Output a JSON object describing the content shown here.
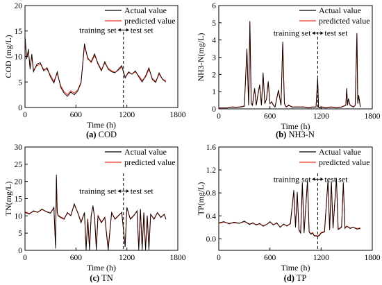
{
  "figure": {
    "panels_count": 4
  },
  "chart_data": [
    {
      "id": "cod",
      "type": "line",
      "caption_letter": "(a)",
      "caption_name": "COD",
      "xlabel": "Time (h)",
      "ylabel": "COD (mg/L)",
      "xlim": [
        0,
        1800
      ],
      "ylim": [
        0,
        20
      ],
      "xticks": [
        "0",
        "600",
        "1200",
        "1800"
      ],
      "yticks": [
        "0",
        "5",
        "10",
        "15",
        "20"
      ],
      "split_x": 1160,
      "annotation": {
        "left": "training set",
        "right": "test set",
        "y": 15.2
      },
      "legend": [
        "Actual value",
        "predicted value"
      ],
      "series": [
        {
          "name": "Actual value",
          "color": "#000000",
          "x": [
            0,
            20,
            40,
            60,
            80,
            100,
            140,
            180,
            220,
            260,
            300,
            340,
            380,
            420,
            460,
            500,
            540,
            580,
            620,
            660,
            700,
            740,
            780,
            820,
            860,
            900,
            940,
            980,
            1020,
            1060,
            1100,
            1140,
            1180,
            1220,
            1260,
            1300,
            1340,
            1380,
            1420,
            1460,
            1500,
            1540,
            1580,
            1620,
            1660
          ],
          "y": [
            14.0,
            9.5,
            11.5,
            7.5,
            10.5,
            7.0,
            8.5,
            8.8,
            7.2,
            7.8,
            6.0,
            4.8,
            7.0,
            4.0,
            2.8,
            2.2,
            3.0,
            2.5,
            3.2,
            4.8,
            12.5,
            9.5,
            9.0,
            10.5,
            8.5,
            7.2,
            9.0,
            7.5,
            7.0,
            6.8,
            7.5,
            8.2,
            5.8,
            7.0,
            6.5,
            7.2,
            6.0,
            5.0,
            6.2,
            7.8,
            5.5,
            4.9,
            6.8,
            5.5,
            5.0
          ]
        },
        {
          "name": "predicted value",
          "color": "#e8331b",
          "x": [
            0,
            20,
            40,
            60,
            80,
            100,
            140,
            180,
            220,
            260,
            300,
            340,
            380,
            420,
            460,
            500,
            540,
            580,
            620,
            660,
            700,
            740,
            780,
            820,
            860,
            900,
            940,
            980,
            1020,
            1060,
            1100,
            1140,
            1180,
            1220,
            1260,
            1300,
            1340,
            1380,
            1420,
            1460,
            1500,
            1540,
            1580,
            1620,
            1660
          ],
          "y": [
            13.6,
            9.8,
            11.0,
            7.8,
            10.0,
            7.3,
            8.2,
            8.5,
            7.5,
            7.5,
            6.3,
            5.1,
            6.7,
            4.3,
            3.1,
            2.5,
            3.3,
            2.8,
            3.4,
            5.0,
            12.0,
            9.8,
            8.8,
            10.2,
            8.7,
            7.4,
            8.7,
            7.7,
            7.2,
            6.9,
            7.3,
            8.0,
            6.0,
            6.8,
            6.6,
            7.0,
            6.2,
            5.3,
            6.0,
            7.5,
            5.7,
            5.1,
            6.5,
            5.6,
            5.2
          ]
        }
      ]
    },
    {
      "id": "nh3n",
      "type": "line",
      "caption_letter": "(b)",
      "caption_name": "NH3-N",
      "xlabel": "Time (h)",
      "ylabel": "NH3-N(mg/L)",
      "xlim": [
        0,
        1800
      ],
      "ylim": [
        0,
        6
      ],
      "xticks": [
        "0",
        "600",
        "1200",
        "1800"
      ],
      "yticks": [
        "0",
        "1",
        "2",
        "3",
        "4",
        "5",
        "6"
      ],
      "split_x": 1160,
      "annotation": {
        "left": "training set",
        "right": "test set",
        "y": 4.4
      },
      "legend": [
        "Actual value",
        "predicted value"
      ],
      "series": [
        {
          "name": "Actual value",
          "color": "#000000",
          "x": [
            0,
            100,
            150,
            200,
            250,
            300,
            330,
            350,
            365,
            380,
            395,
            420,
            440,
            460,
            480,
            500,
            520,
            540,
            560,
            580,
            600,
            620,
            640,
            660,
            700,
            730,
            750,
            770,
            790,
            820,
            860,
            900,
            950,
            1000,
            1050,
            1100,
            1140,
            1160,
            1170,
            1180,
            1200,
            1260,
            1320,
            1380,
            1440,
            1490,
            1500,
            1510,
            1520,
            1540,
            1580,
            1600,
            1620,
            1630,
            1640,
            1660
          ],
          "x_note": "",
          "y": [
            0.05,
            0.05,
            0.1,
            0.08,
            0.1,
            0.15,
            3.5,
            0.2,
            5.1,
            0.3,
            0.2,
            1.2,
            0.2,
            0.9,
            1.4,
            0.2,
            2.1,
            0.3,
            0.6,
            1.6,
            0.3,
            0.4,
            0.2,
            0.1,
            1.1,
            0.2,
            3.9,
            0.3,
            0.1,
            0.2,
            0.1,
            0.1,
            0.1,
            0.1,
            0.05,
            0.1,
            0.1,
            1.8,
            0.1,
            0.05,
            0.1,
            0.05,
            0.1,
            0.05,
            0.1,
            0.2,
            1.2,
            0.2,
            0.6,
            0.2,
            0.1,
            0.2,
            4.4,
            0.3,
            0.8,
            0.1
          ]
        },
        {
          "name": "predicted value",
          "color": "#e8331b",
          "x": [
            0,
            100,
            150,
            200,
            250,
            300,
            330,
            350,
            365,
            380,
            395,
            420,
            440,
            460,
            480,
            500,
            520,
            540,
            560,
            580,
            600,
            620,
            640,
            660,
            700,
            730,
            750,
            770,
            790,
            820,
            860,
            900,
            950,
            1000,
            1050,
            1100,
            1140,
            1160,
            1170,
            1180,
            1200,
            1260,
            1320,
            1380,
            1440,
            1490,
            1500,
            1510,
            1520,
            1540,
            1580,
            1600,
            1620,
            1630,
            1640,
            1660
          ],
          "y": [
            0.06,
            0.06,
            0.12,
            0.1,
            0.12,
            0.17,
            3.4,
            0.22,
            5.0,
            0.32,
            0.22,
            1.15,
            0.22,
            0.85,
            1.35,
            0.22,
            2.0,
            0.32,
            0.58,
            1.55,
            0.32,
            0.42,
            0.22,
            0.12,
            1.05,
            0.22,
            3.85,
            0.32,
            0.12,
            0.22,
            0.12,
            0.12,
            0.12,
            0.12,
            0.07,
            0.12,
            0.12,
            1.75,
            0.12,
            0.07,
            0.12,
            0.07,
            0.12,
            0.07,
            0.12,
            0.22,
            1.15,
            0.22,
            0.58,
            0.22,
            0.12,
            0.22,
            4.35,
            0.32,
            0.75,
            0.12
          ]
        }
      ]
    },
    {
      "id": "tn",
      "type": "line",
      "caption_letter": "(c)",
      "caption_name": "TN",
      "xlabel": "Time (h)",
      "ylabel": "TN(mg/L)",
      "xlim": [
        0,
        1800
      ],
      "ylim": [
        0,
        30
      ],
      "xticks": [
        "0",
        "600",
        "1200",
        "1800"
      ],
      "yticks": [
        "0",
        "5",
        "10",
        "15",
        "20",
        "25",
        "30"
      ],
      "split_x": 1160,
      "annotation": {
        "left": "training set",
        "right": "test set",
        "y": 17.2
      },
      "legend": [
        "Actual value",
        "predicted value"
      ],
      "series": [
        {
          "name": "Actual value",
          "color": "#000000",
          "x": [
            0,
            50,
            100,
            150,
            200,
            250,
            300,
            340,
            360,
            370,
            380,
            390,
            420,
            460,
            500,
            540,
            580,
            620,
            660,
            700,
            720,
            740,
            760,
            780,
            800,
            820,
            840,
            860,
            900,
            940,
            980,
            1020,
            1060,
            1100,
            1140,
            1180,
            1200,
            1240,
            1280,
            1320,
            1340,
            1360,
            1380,
            1400,
            1420,
            1440,
            1460,
            1480,
            1520,
            1560,
            1600,
            1640,
            1660
          ],
          "y": [
            11.0,
            10.5,
            11.5,
            11.0,
            12.0,
            11.2,
            10.8,
            12.5,
            0.5,
            22.0,
            11.0,
            10.0,
            9.5,
            9.0,
            11.0,
            10.0,
            13.5,
            11.0,
            8.0,
            11.0,
            0.0,
            9.0,
            0.0,
            10.0,
            13.0,
            9.5,
            0.0,
            10.0,
            8.0,
            9.5,
            0.0,
            11.0,
            9.0,
            10.0,
            11.0,
            1.0,
            12.5,
            9.0,
            10.0,
            11.5,
            0.0,
            12.0,
            0.0,
            11.0,
            0.0,
            10.0,
            0.0,
            10.5,
            9.0,
            11.0,
            9.5,
            10.5,
            9.0
          ]
        },
        {
          "name": "predicted value",
          "color": "#e8331b",
          "x": [
            0,
            50,
            100,
            150,
            200,
            250,
            300,
            340,
            360,
            370,
            380,
            390,
            420,
            460,
            500,
            540,
            580,
            620,
            660,
            700,
            720,
            740,
            760,
            780,
            800,
            820,
            840,
            860,
            900,
            940,
            980,
            1020,
            1060,
            1100,
            1140,
            1180,
            1200,
            1240,
            1280,
            1320,
            1340,
            1360,
            1380,
            1400,
            1420,
            1440,
            1460,
            1480,
            1520,
            1560,
            1600,
            1640,
            1660
          ],
          "y": [
            11.2,
            10.7,
            11.3,
            11.1,
            11.8,
            11.3,
            10.9,
            12.3,
            1.2,
            21.0,
            11.2,
            10.2,
            9.7,
            9.2,
            10.8,
            10.2,
            13.2,
            11.1,
            8.3,
            10.9,
            0.8,
            9.2,
            0.8,
            10.1,
            12.7,
            9.7,
            0.8,
            10.1,
            8.2,
            9.6,
            0.8,
            10.9,
            9.2,
            10.1,
            11.0,
            1.5,
            12.3,
            9.2,
            10.1,
            11.3,
            0.8,
            11.8,
            0.8,
            10.9,
            0.8,
            10.1,
            0.8,
            10.4,
            9.2,
            10.9,
            9.6,
            10.4,
            9.2
          ]
        }
      ]
    },
    {
      "id": "tp",
      "type": "line",
      "caption_letter": "(d)",
      "caption_name": "TP",
      "xlabel": "Time (h)",
      "ylabel": "TP(mg/L)",
      "xlim": [
        0,
        1800
      ],
      "ylim": [
        -0.2,
        1.6
      ],
      "xticks": [
        "0",
        "600",
        "1200",
        "1800"
      ],
      "yticks": [
        "0.0",
        "0.4",
        "0.8",
        "1.2",
        "1.6"
      ],
      "ytick_values": [
        0,
        0.4,
        0.8,
        1.2,
        1.6
      ],
      "split_x": 1160,
      "annotation": {
        "left": "training set",
        "right": "test set",
        "y": 1.04
      },
      "legend": [
        "Actual value",
        "predicted value"
      ],
      "series": [
        {
          "name": "Actual value",
          "color": "#000000",
          "x": [
            0,
            60,
            120,
            180,
            240,
            300,
            360,
            400,
            440,
            480,
            520,
            560,
            600,
            640,
            680,
            720,
            760,
            800,
            840,
            880,
            900,
            920,
            940,
            960,
            980,
            1000,
            1040,
            1060,
            1080,
            1100,
            1120,
            1140,
            1160,
            1180,
            1200,
            1240,
            1280,
            1300,
            1320,
            1340,
            1380,
            1400,
            1440,
            1460,
            1480,
            1500,
            1540,
            1580,
            1620,
            1660
          ],
          "y": [
            0.28,
            0.3,
            0.26,
            0.29,
            0.27,
            0.31,
            0.25,
            0.28,
            0.24,
            0.27,
            0.22,
            0.25,
            0.3,
            0.24,
            0.28,
            0.2,
            0.26,
            0.22,
            0.27,
            0.85,
            0.2,
            0.82,
            0.15,
            0.1,
            0.98,
            0.1,
            1.02,
            0.12,
            0.08,
            0.1,
            0.05,
            0.05,
            0.04,
            0.06,
            0.1,
            0.12,
            1.02,
            0.15,
            1.0,
            0.18,
            1.06,
            0.16,
            0.2,
            0.98,
            0.18,
            0.22,
            0.18,
            0.2,
            0.17,
            0.18
          ]
        },
        {
          "name": "predicted value",
          "color": "#e8331b",
          "x": [
            0,
            60,
            120,
            180,
            240,
            300,
            360,
            400,
            440,
            480,
            520,
            560,
            600,
            640,
            680,
            720,
            760,
            800,
            840,
            880,
            900,
            920,
            940,
            960,
            980,
            1000,
            1040,
            1060,
            1080,
            1100,
            1120,
            1140,
            1160,
            1180,
            1200,
            1240,
            1280,
            1300,
            1320,
            1340,
            1380,
            1400,
            1440,
            1460,
            1480,
            1500,
            1540,
            1580,
            1620,
            1660
          ],
          "y": [
            0.27,
            0.29,
            0.27,
            0.28,
            0.27,
            0.3,
            0.26,
            0.27,
            0.25,
            0.26,
            0.23,
            0.25,
            0.29,
            0.25,
            0.27,
            0.21,
            0.25,
            0.23,
            0.26,
            0.82,
            0.21,
            0.8,
            0.16,
            0.12,
            0.95,
            0.12,
            1.0,
            0.13,
            0.09,
            0.11,
            0.06,
            0.06,
            0.05,
            0.07,
            0.11,
            0.13,
            1.0,
            0.16,
            0.98,
            0.19,
            1.04,
            0.17,
            0.21,
            0.96,
            0.19,
            0.22,
            0.19,
            0.2,
            0.18,
            0.19
          ]
        }
      ]
    }
  ]
}
